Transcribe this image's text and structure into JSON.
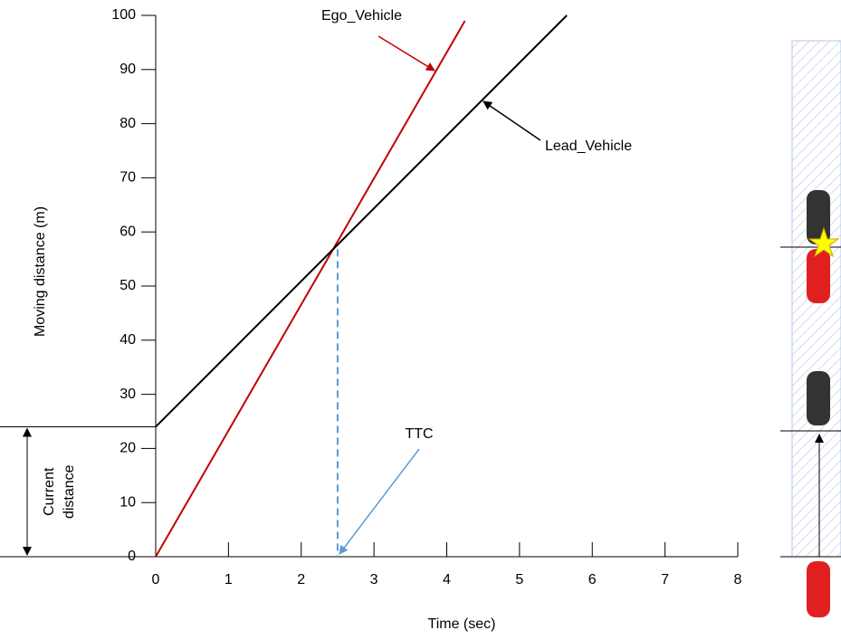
{
  "chart_data": {
    "type": "line",
    "x_label": "Time (sec)",
    "y_label": "Moving distance (m)",
    "xlim": [
      0,
      8
    ],
    "xticks": [
      0,
      1,
      2,
      3,
      4,
      5,
      6,
      7,
      8
    ],
    "ylim": [
      0,
      100
    ],
    "yticks": [
      0,
      10,
      20,
      30,
      40,
      50,
      60,
      70,
      80,
      90,
      100
    ],
    "series": [
      {
        "name": "Ego_Vehicle",
        "color": "#c00000",
        "x": [
          0,
          4.25
        ],
        "values": [
          0,
          99
        ]
      },
      {
        "name": "Lead_Vehicle",
        "color": "#000000",
        "x": [
          0,
          5.65
        ],
        "values": [
          24,
          100
        ]
      }
    ],
    "ttc": {
      "label": "TTC",
      "x": 2.5,
      "color": "#5b9bd5"
    },
    "current_distance": {
      "label_lines": [
        "Current",
        "distance"
      ]
    }
  }
}
